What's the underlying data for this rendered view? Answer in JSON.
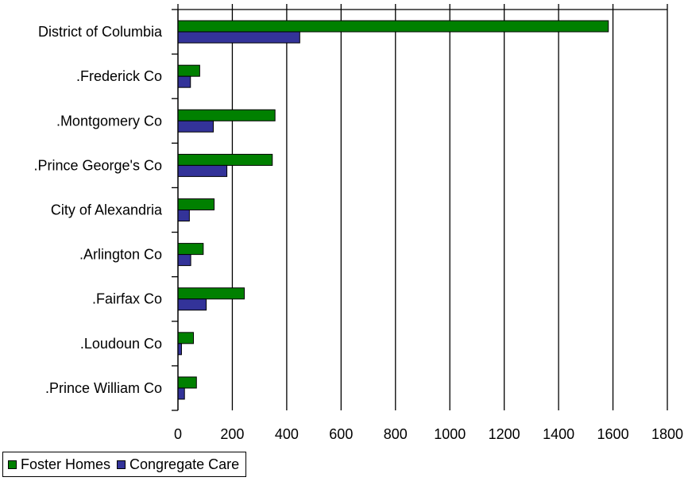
{
  "chart_data": {
    "type": "bar",
    "orientation": "horizontal",
    "categories": [
      "District of Columbia",
      ".Frederick Co",
      ".Montgomery Co",
      ".Prince George's Co",
      "City of Alexandria",
      ".Arlington Co",
      ".Fairfax Co",
      ".Loudoun Co",
      ".Prince William Co"
    ],
    "series": [
      {
        "name": "Foster Homes",
        "color": "#008000",
        "values": [
          1583,
          80,
          357,
          347,
          133,
          93,
          244,
          57,
          68
        ]
      },
      {
        "name": "Congregate Care",
        "color": "#333399",
        "values": [
          448,
          46,
          130,
          180,
          42,
          47,
          104,
          13,
          24
        ]
      }
    ],
    "xlim": [
      0,
      1800
    ],
    "xticks": [
      "0",
      "200",
      "400",
      "600",
      "800",
      "1000",
      "1200",
      "1400",
      "1600",
      "1800"
    ],
    "grid": true,
    "legend_position": "bottom-left",
    "title": "",
    "xlabel": "",
    "ylabel": ""
  }
}
